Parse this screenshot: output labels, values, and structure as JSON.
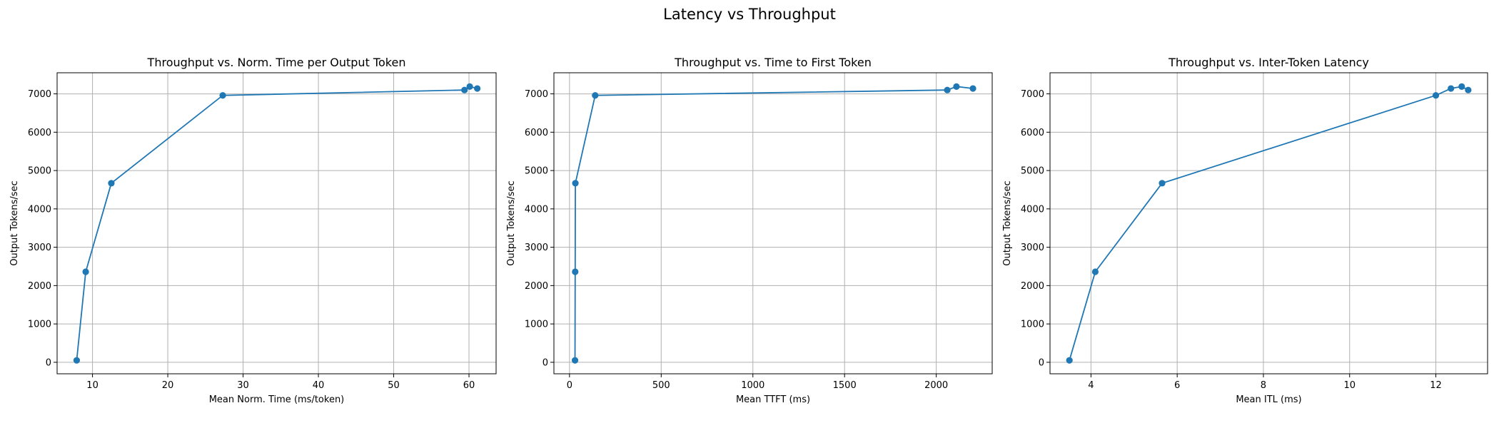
{
  "figure_title": "Latency vs Throughput",
  "chart_data": [
    {
      "type": "line",
      "title": "Throughput vs. Norm. Time per Output Token",
      "xlabel": "Mean Norm. Time (ms/token)",
      "ylabel": "Output Tokens/sec",
      "xlim": [
        5.3,
        63.6
      ],
      "ylim": [
        -300,
        7550
      ],
      "xticks": [
        10,
        20,
        30,
        40,
        50,
        60
      ],
      "yticks": [
        0,
        1000,
        2000,
        3000,
        4000,
        5000,
        6000,
        7000
      ],
      "grid": true,
      "color": "#1f77b4",
      "x": [
        7.9,
        9.1,
        12.5,
        27.3,
        59.4,
        60.1,
        61.1
      ],
      "y": [
        50,
        2360,
        4670,
        6960,
        7100,
        7190,
        7140
      ]
    },
    {
      "type": "line",
      "title": "Throughput vs. Time to First Token",
      "xlabel": "Mean TTFT (ms)",
      "ylabel": "Output Tokens/sec",
      "xlim": [
        -85,
        2305
      ],
      "ylim": [
        -300,
        7550
      ],
      "xticks": [
        0,
        500,
        1000,
        1500,
        2000
      ],
      "yticks": [
        0,
        1000,
        2000,
        3000,
        4000,
        5000,
        6000,
        7000
      ],
      "grid": true,
      "color": "#1f77b4",
      "x": [
        30,
        31,
        32,
        140,
        2060,
        2110,
        2200
      ],
      "y": [
        50,
        2360,
        4670,
        6960,
        7100,
        7190,
        7140
      ]
    },
    {
      "type": "line",
      "title": "Throughput vs. Inter-Token Latency",
      "xlabel": "Mean ITL (ms)",
      "ylabel": "Output Tokens/sec",
      "xlim": [
        3.05,
        13.2
      ],
      "ylim": [
        -300,
        7550
      ],
      "xticks": [
        4,
        6,
        8,
        10,
        12
      ],
      "yticks": [
        0,
        1000,
        2000,
        3000,
        4000,
        5000,
        6000,
        7000
      ],
      "grid": true,
      "color": "#1f77b4",
      "x": [
        3.5,
        4.1,
        5.65,
        12.0,
        12.35,
        12.6,
        12.75
      ],
      "y": [
        50,
        2360,
        4670,
        6960,
        7140,
        7190,
        7100
      ]
    }
  ]
}
